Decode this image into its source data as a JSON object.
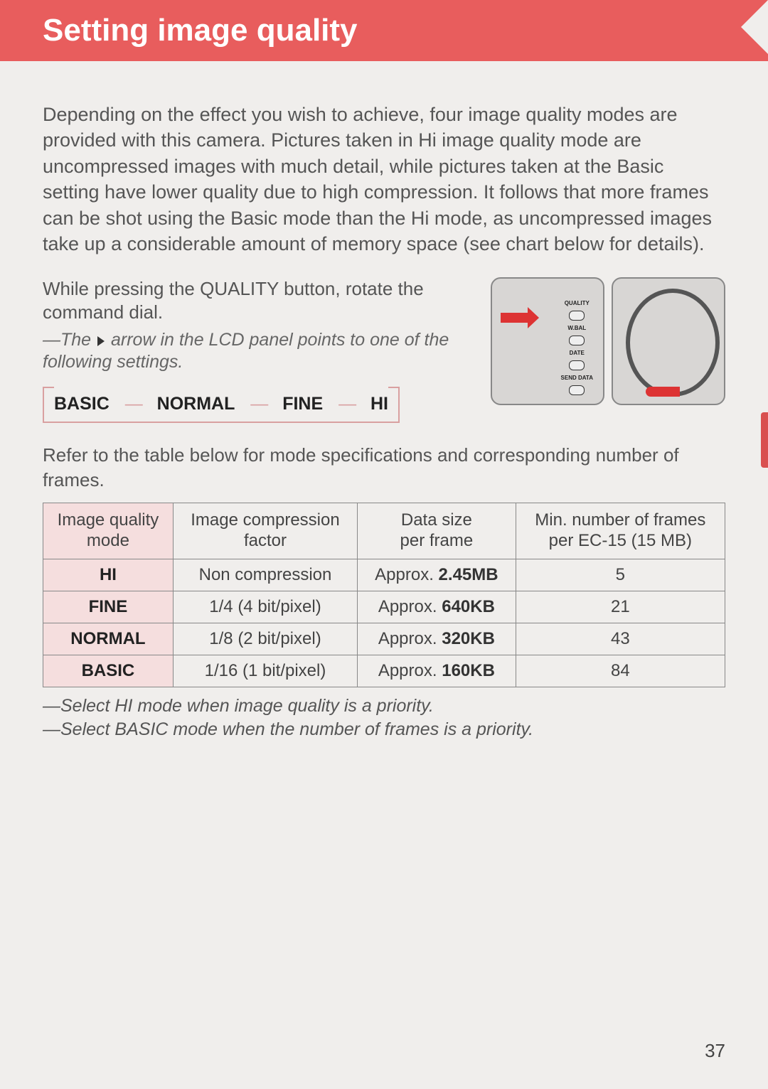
{
  "header": {
    "title": "Setting image quality"
  },
  "intro": "Depending on the effect you wish to achieve, four image quality modes are provided with this camera. Pictures taken in Hi image quality mode are uncompressed images with much detail, while pictures taken at the Basic setting have lower quality due to high compression. It follows that more frames can be shot using the Basic mode than the Hi mode, as uncompressed images take up a considerable amount of memory space (see chart below for details).",
  "instruction": {
    "line": "While pressing the QUALITY button, rotate the command dial.",
    "note_prefix": "—The",
    "note_suffix": "arrow in the LCD panel points to one of the following settings."
  },
  "modes": {
    "m1": "BASIC",
    "m2": "NORMAL",
    "m3": "FINE",
    "m4": "HI",
    "sep": "—"
  },
  "refer": "Refer to the table below for mode specifications and corresponding number of frames.",
  "table": {
    "columns": {
      "c1a": "Image quality",
      "c1b": "mode",
      "c2a": "Image compression",
      "c2b": "factor",
      "c3a": "Data size",
      "c3b": "per frame",
      "c4a": "Min. number of frames",
      "c4b": "per EC-15 (15 MB)"
    },
    "rows": [
      {
        "mode": "HI",
        "compression": "Non compression",
        "size_prefix": "Approx. ",
        "size_val": "2.45MB",
        "frames": "5"
      },
      {
        "mode": "FINE",
        "compression": "1/4 (4 bit/pixel)",
        "size_prefix": "Approx. ",
        "size_val": "640KB",
        "frames": "21"
      },
      {
        "mode": "NORMAL",
        "compression": "1/8 (2 bit/pixel)",
        "size_prefix": "Approx. ",
        "size_val": "320KB",
        "frames": "43"
      },
      {
        "mode": "BASIC",
        "compression": "1/16 (1 bit/pixel)",
        "size_prefix": "Approx. ",
        "size_val": "160KB",
        "frames": "84"
      }
    ]
  },
  "footnotes": {
    "f1": "—Select HI mode when image quality is a priority.",
    "f2": "—Select BASIC mode when the number of frames is a priority."
  },
  "page_number": "37",
  "colors": {
    "header_bg": "#e85d5d",
    "page_bg": "#f0eeec",
    "border": "#888888",
    "row_header_bg": "#f5dede",
    "mode_border": "#d9a0a0",
    "tab": "#d94f4f"
  }
}
